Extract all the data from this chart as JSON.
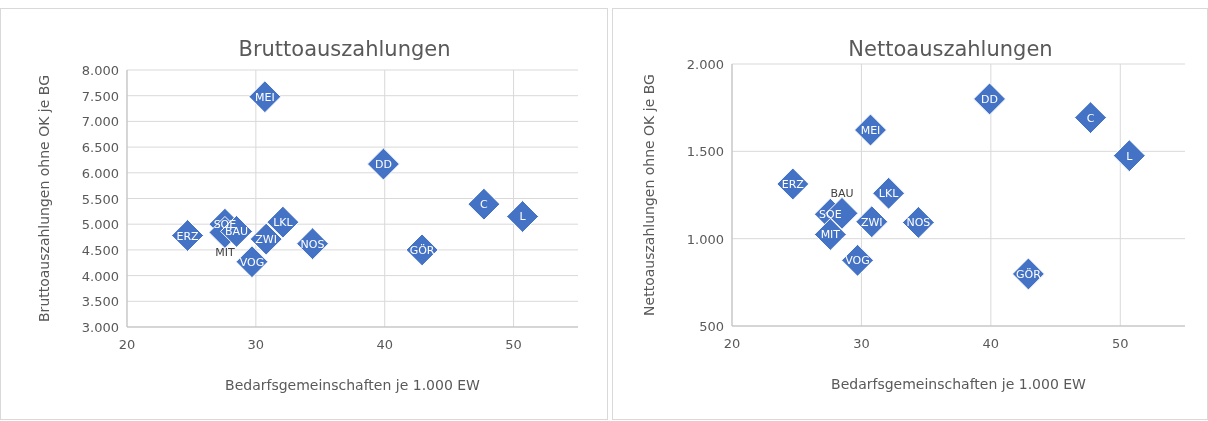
{
  "chart_data": [
    {
      "type": "scatter",
      "title": "Bruttoauszahlungen",
      "xlabel": "Bedarfsgemeinschaften je 1.000 EW",
      "ylabel": "Bruttoauszahlungen ohne OK je BG",
      "x": [
        30.7,
        39.9,
        47.7,
        50.7,
        42.9,
        34.4,
        32.1,
        30.8,
        29.7,
        24.7,
        27.6,
        27.6,
        28.5
      ],
      "series": [
        {
          "color": "#4472c4",
          "values": [
            7480,
            6170,
            5390,
            5150,
            4500,
            4620,
            5040,
            4710,
            4270,
            4780,
            5000,
            4840,
            4860
          ]
        }
      ],
      "annotations": [
        {
          "text": "MEI",
          "x": 30.7,
          "y": 7480
        },
        {
          "text": "DD",
          "x": 39.9,
          "y": 6170
        },
        {
          "text": "C",
          "x": 47.7,
          "y": 5390
        },
        {
          "text": "L",
          "x": 50.7,
          "y": 5150
        },
        {
          "text": "GÖR",
          "x": 42.9,
          "y": 4500
        },
        {
          "text": "NOS",
          "x": 34.4,
          "y": 4620
        },
        {
          "text": "LKL",
          "x": 32.1,
          "y": 5040
        },
        {
          "text": "ZWI",
          "x": 30.8,
          "y": 4710
        },
        {
          "text": "VOG",
          "x": 29.7,
          "y": 4270
        },
        {
          "text": "ERZ",
          "x": 24.7,
          "y": 4780
        },
        {
          "text": "SOE",
          "x": 27.6,
          "y": 5000
        },
        {
          "text": "MIT",
          "x": 27.6,
          "y": 4840
        },
        {
          "text": "BAU",
          "x": 28.5,
          "y": 4860
        }
      ],
      "xlim": [
        20,
        55
      ],
      "xticks": [
        20,
        30,
        40,
        50
      ],
      "ylim": [
        3000,
        8000
      ],
      "yticks": [
        {
          "value": 3000,
          "label": "3.000"
        },
        {
          "value": 3500,
          "label": "3.500"
        },
        {
          "value": 4000,
          "label": "4.000"
        },
        {
          "value": 4500,
          "label": "4.500"
        },
        {
          "value": 5000,
          "label": "5.000"
        },
        {
          "value": 5500,
          "label": "5.500"
        },
        {
          "value": 6000,
          "label": "6.000"
        },
        {
          "value": 6500,
          "label": "6.500"
        },
        {
          "value": 7000,
          "label": "7.000"
        },
        {
          "value": 7500,
          "label": "7.500"
        },
        {
          "value": 8000,
          "label": "8.000"
        }
      ],
      "grid": true,
      "marker": "diamond"
    },
    {
      "type": "scatter",
      "title": "Nettoauszahlungen",
      "xlabel": "Bedarfsgemeinschaften je 1.000 EW",
      "ylabel": "Nettoauszahlungen ohne OK je BG",
      "x": [
        30.7,
        39.9,
        47.7,
        50.7,
        42.9,
        34.4,
        32.1,
        30.8,
        29.7,
        24.7,
        27.6,
        27.6,
        28.5
      ],
      "series": [
        {
          "color": "#4472c4",
          "values": [
            1622,
            1800,
            1693,
            1475,
            798,
            1093,
            1260,
            1097,
            876,
            1313,
            1140,
            1024,
            1145
          ]
        }
      ],
      "annotations": [
        {
          "text": "MEI",
          "x": 30.7,
          "y": 1622
        },
        {
          "text": "DD",
          "x": 39.9,
          "y": 1800
        },
        {
          "text": "C",
          "x": 47.7,
          "y": 1693
        },
        {
          "text": "L",
          "x": 50.7,
          "y": 1475
        },
        {
          "text": "GÖR",
          "x": 42.9,
          "y": 798
        },
        {
          "text": "NOS",
          "x": 34.4,
          "y": 1093
        },
        {
          "text": "LKL",
          "x": 32.1,
          "y": 1260
        },
        {
          "text": "ZWI",
          "x": 30.8,
          "y": 1097
        },
        {
          "text": "VOG",
          "x": 29.7,
          "y": 876
        },
        {
          "text": "ERZ",
          "x": 24.7,
          "y": 1313
        },
        {
          "text": "SOE",
          "x": 27.6,
          "y": 1140
        },
        {
          "text": "MIT",
          "x": 27.6,
          "y": 1024
        },
        {
          "text": "BAU",
          "x": 28.5,
          "y": 1145
        }
      ],
      "xlim": [
        20,
        55
      ],
      "xticks": [
        20,
        30,
        40,
        50
      ],
      "ylim": [
        500,
        2000
      ],
      "yticks": [
        {
          "value": 500,
          "label": "500"
        },
        {
          "value": 1000,
          "label": "1.000"
        },
        {
          "value": 1500,
          "label": "1.500"
        },
        {
          "value": 2000,
          "label": "2.000"
        }
      ],
      "grid": true,
      "marker": "diamond"
    }
  ]
}
